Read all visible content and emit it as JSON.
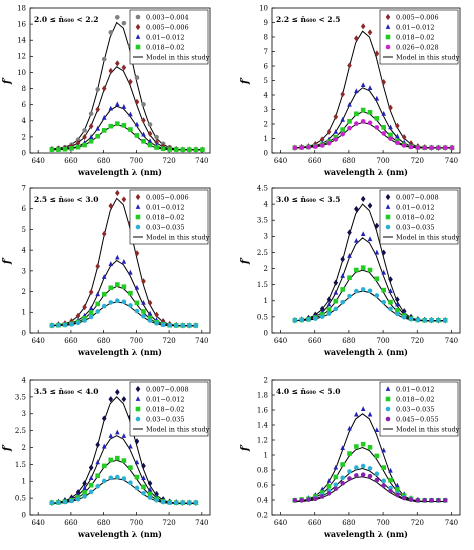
{
  "figure": {
    "model_label": "Model in this study"
  },
  "chart_data": [
    {
      "type": "line",
      "title": "2.0 ≤ n̄₆₀₀ < 2.2",
      "xlabel": "wavelength λ (nm)",
      "ylabel": "f′",
      "xlim": [
        635,
        745
      ],
      "ylim": [
        0,
        18
      ],
      "xticks": [
        640,
        660,
        680,
        700,
        720,
        740
      ],
      "yticks": [
        0,
        2,
        4,
        6,
        8,
        10,
        12,
        14,
        16,
        18
      ],
      "grid": false,
      "legend": "top-right",
      "x": [
        648,
        652,
        656,
        660,
        664,
        668,
        672,
        676,
        680,
        684,
        688,
        692,
        696,
        700,
        704,
        708,
        712,
        716,
        720,
        724,
        728,
        732,
        736,
        740
      ],
      "series": [
        {
          "name": "0.003−0.004",
          "color": "#808080",
          "marker": "circle",
          "values": [
            0.5,
            0.6,
            0.7,
            1.0,
            1.6,
            2.7,
            4.7,
            7.6,
            11.2,
            14.4,
            16.2,
            15.5,
            12.8,
            9.0,
            5.8,
            3.4,
            1.9,
            1.1,
            0.7,
            0.5,
            0.4,
            0.4,
            0.4,
            0.4
          ]
        },
        {
          "name": "0.005−0.006",
          "color": "#8b2a2a",
          "marker": "diamond",
          "values": [
            0.45,
            0.5,
            0.6,
            0.8,
            1.2,
            1.9,
            3.2,
            5.2,
            7.7,
            9.8,
            10.7,
            10.2,
            8.5,
            6.1,
            3.9,
            2.3,
            1.3,
            0.8,
            0.55,
            0.45,
            0.4,
            0.4,
            0.4,
            0.4
          ]
        },
        {
          "name": "0.01−0.012",
          "color": "#2323b8",
          "marker": "triangle",
          "values": [
            0.4,
            0.45,
            0.5,
            0.6,
            0.8,
            1.2,
            1.9,
            2.9,
            4.2,
            5.3,
            5.8,
            5.5,
            4.6,
            3.4,
            2.2,
            1.4,
            0.9,
            0.6,
            0.45,
            0.4,
            0.4,
            0.4,
            0.4,
            0.4
          ]
        },
        {
          "name": "0.018−0.02",
          "color": "#22cc22",
          "marker": "square",
          "values": [
            0.4,
            0.4,
            0.45,
            0.55,
            0.7,
            0.95,
            1.4,
            2.0,
            2.7,
            3.2,
            3.5,
            3.3,
            2.8,
            2.1,
            1.4,
            0.95,
            0.65,
            0.5,
            0.42,
            0.4,
            0.4,
            0.4,
            0.4,
            0.4
          ]
        }
      ]
    },
    {
      "type": "line",
      "title": "2.2 ≤ n̄₆₀₀ < 2.5",
      "xlabel": "wavelength λ (nm)",
      "ylabel": "f′",
      "xlim": [
        635,
        745
      ],
      "ylim": [
        0,
        10
      ],
      "xticks": [
        640,
        660,
        680,
        700,
        720,
        740
      ],
      "yticks": [
        0,
        1,
        2,
        3,
        4,
        5,
        6,
        7,
        8,
        9,
        10
      ],
      "grid": false,
      "legend": "top-right",
      "x": [
        648,
        652,
        656,
        660,
        664,
        668,
        672,
        676,
        680,
        684,
        688,
        692,
        696,
        700,
        704,
        708,
        712,
        716,
        720,
        724,
        728,
        732,
        736,
        740
      ],
      "series": [
        {
          "name": "0.005−0.006",
          "color": "#8b2a2a",
          "marker": "diamond",
          "values": [
            0.35,
            0.4,
            0.45,
            0.6,
            0.9,
            1.4,
            2.4,
            3.9,
            5.8,
            7.6,
            8.4,
            8.0,
            6.6,
            4.7,
            3.0,
            1.8,
            1.05,
            0.65,
            0.45,
            0.38,
            0.35,
            0.35,
            0.35,
            0.35
          ]
        },
        {
          "name": "0.01−0.012",
          "color": "#2323b8",
          "marker": "triangle",
          "values": [
            0.35,
            0.38,
            0.42,
            0.5,
            0.65,
            0.9,
            1.4,
            2.2,
            3.2,
            4.1,
            4.5,
            4.3,
            3.6,
            2.6,
            1.7,
            1.1,
            0.7,
            0.5,
            0.4,
            0.36,
            0.35,
            0.35,
            0.35,
            0.35
          ]
        },
        {
          "name": "0.018−0.02",
          "color": "#22cc22",
          "marker": "square",
          "values": [
            0.35,
            0.37,
            0.4,
            0.45,
            0.55,
            0.75,
            1.05,
            1.55,
            2.1,
            2.6,
            2.85,
            2.7,
            2.3,
            1.7,
            1.2,
            0.8,
            0.55,
            0.42,
            0.37,
            0.35,
            0.35,
            0.35,
            0.35,
            0.35
          ]
        },
        {
          "name": "0.026−0.028",
          "color": "#cc22cc",
          "marker": "circle",
          "values": [
            0.35,
            0.36,
            0.38,
            0.42,
            0.5,
            0.65,
            0.9,
            1.25,
            1.65,
            1.95,
            2.1,
            2.0,
            1.7,
            1.3,
            0.95,
            0.68,
            0.5,
            0.4,
            0.36,
            0.35,
            0.35,
            0.35,
            0.35,
            0.35
          ]
        }
      ]
    },
    {
      "type": "line",
      "title": "2.5 ≤ n̄₆₀₀ < 3.0",
      "xlabel": "wavelength λ (nm)",
      "ylabel": "f′",
      "xlim": [
        635,
        745
      ],
      "ylim": [
        0,
        7
      ],
      "xticks": [
        640,
        660,
        680,
        700,
        720,
        740
      ],
      "yticks": [
        0,
        1,
        2,
        3,
        4,
        5,
        6,
        7
      ],
      "grid": false,
      "legend": "top-right",
      "x": [
        648,
        652,
        656,
        660,
        664,
        668,
        672,
        676,
        680,
        684,
        688,
        692,
        696,
        700,
        704,
        708,
        712,
        716,
        720,
        724,
        728,
        732,
        736
      ],
      "series": [
        {
          "name": "0.005−0.006",
          "color": "#8b2a2a",
          "marker": "diamond",
          "values": [
            0.35,
            0.4,
            0.45,
            0.55,
            0.8,
            1.2,
            1.9,
            3.1,
            4.6,
            5.9,
            6.5,
            6.2,
            5.1,
            3.7,
            2.4,
            1.4,
            0.85,
            0.55,
            0.42,
            0.37,
            0.35,
            0.35,
            0.35
          ]
        },
        {
          "name": "0.01−0.012",
          "color": "#2323b8",
          "marker": "triangle",
          "values": [
            0.35,
            0.37,
            0.4,
            0.47,
            0.6,
            0.8,
            1.15,
            1.8,
            2.6,
            3.2,
            3.5,
            3.3,
            2.8,
            2.1,
            1.4,
            0.9,
            0.6,
            0.45,
            0.38,
            0.35,
            0.35,
            0.35,
            0.35
          ]
        },
        {
          "name": "0.018−0.02",
          "color": "#22cc22",
          "marker": "square",
          "values": [
            0.35,
            0.36,
            0.38,
            0.43,
            0.52,
            0.68,
            0.95,
            1.35,
            1.8,
            2.1,
            2.25,
            2.15,
            1.85,
            1.4,
            1.0,
            0.7,
            0.5,
            0.4,
            0.36,
            0.35,
            0.35,
            0.35,
            0.35
          ]
        },
        {
          "name": "0.03−0.035",
          "color": "#2ab0d4",
          "marker": "circle",
          "values": [
            0.35,
            0.36,
            0.37,
            0.4,
            0.47,
            0.58,
            0.75,
            1.0,
            1.25,
            1.42,
            1.5,
            1.45,
            1.28,
            1.02,
            0.78,
            0.58,
            0.45,
            0.38,
            0.36,
            0.35,
            0.35,
            0.35,
            0.35
          ]
        }
      ]
    },
    {
      "type": "line",
      "title": "3.0 ≤ n̄₆₀₀ < 3.5",
      "xlabel": "wavelength λ (nm)",
      "ylabel": "f′",
      "xlim": [
        635,
        745
      ],
      "ylim": [
        0,
        4.5
      ],
      "xticks": [
        640,
        660,
        680,
        700,
        720,
        740
      ],
      "yticks": [
        0,
        0.5,
        1,
        1.5,
        2,
        2.5,
        3,
        3.5,
        4,
        4.5
      ],
      "grid": false,
      "legend": "top-right",
      "x": [
        648,
        652,
        656,
        660,
        664,
        668,
        672,
        676,
        680,
        684,
        688,
        692,
        696,
        700,
        704,
        708,
        712,
        716,
        720,
        724,
        728,
        732,
        736
      ],
      "series": [
        {
          "name": "0.007−0.008",
          "color": "#10104a",
          "marker": "diamond",
          "values": [
            0.38,
            0.4,
            0.45,
            0.55,
            0.72,
            1.0,
            1.5,
            2.2,
            3.0,
            3.7,
            4.0,
            3.8,
            3.2,
            2.4,
            1.6,
            1.0,
            0.65,
            0.48,
            0.41,
            0.39,
            0.38,
            0.38,
            0.38
          ]
        },
        {
          "name": "0.01−0.012",
          "color": "#2323b8",
          "marker": "triangle",
          "values": [
            0.38,
            0.4,
            0.43,
            0.5,
            0.62,
            0.85,
            1.2,
            1.7,
            2.3,
            2.75,
            2.95,
            2.8,
            2.4,
            1.8,
            1.25,
            0.85,
            0.58,
            0.45,
            0.4,
            0.38,
            0.38,
            0.38,
            0.38
          ]
        },
        {
          "name": "0.018−0.02",
          "color": "#22cc22",
          "marker": "square",
          "values": [
            0.38,
            0.39,
            0.41,
            0.46,
            0.55,
            0.7,
            0.95,
            1.3,
            1.65,
            1.88,
            1.95,
            1.88,
            1.62,
            1.28,
            0.92,
            0.68,
            0.52,
            0.43,
            0.39,
            0.38,
            0.38,
            0.38,
            0.38
          ]
        },
        {
          "name": "0.03−0.035",
          "color": "#2ab0d4",
          "marker": "circle",
          "values": [
            0.38,
            0.39,
            0.4,
            0.43,
            0.49,
            0.58,
            0.72,
            0.92,
            1.1,
            1.25,
            1.3,
            1.26,
            1.12,
            0.92,
            0.72,
            0.57,
            0.47,
            0.41,
            0.39,
            0.38,
            0.38,
            0.38,
            0.38
          ]
        }
      ]
    },
    {
      "type": "line",
      "title": "3.5 ≤ n̄₆₀₀ < 4.0",
      "xlabel": "wavelength λ (nm)",
      "ylabel": "f′",
      "xlim": [
        635,
        745
      ],
      "ylim": [
        0,
        4
      ],
      "xticks": [
        640,
        660,
        680,
        700,
        720,
        740
      ],
      "yticks": [
        0,
        0.5,
        1,
        1.5,
        2,
        2.5,
        3,
        3.5,
        4
      ],
      "grid": false,
      "legend": "top-right",
      "x": [
        648,
        652,
        656,
        660,
        664,
        668,
        672,
        676,
        680,
        684,
        688,
        692,
        696,
        700,
        704,
        708,
        712,
        716,
        720,
        724,
        728,
        732,
        736
      ],
      "series": [
        {
          "name": "0.007−0.008",
          "color": "#10104a",
          "marker": "diamond",
          "values": [
            0.35,
            0.37,
            0.42,
            0.5,
            0.65,
            0.9,
            1.35,
            2.0,
            2.75,
            3.3,
            3.5,
            3.3,
            2.8,
            2.1,
            1.4,
            0.9,
            0.6,
            0.45,
            0.38,
            0.36,
            0.35,
            0.35,
            0.35
          ]
        },
        {
          "name": "0.01−0.012",
          "color": "#2323b8",
          "marker": "triangle",
          "values": [
            0.35,
            0.36,
            0.4,
            0.46,
            0.57,
            0.76,
            1.05,
            1.5,
            1.95,
            2.25,
            2.35,
            2.25,
            1.95,
            1.5,
            1.05,
            0.72,
            0.52,
            0.41,
            0.37,
            0.35,
            0.35,
            0.35,
            0.35
          ]
        },
        {
          "name": "0.018−0.02",
          "color": "#22cc22",
          "marker": "square",
          "values": [
            0.35,
            0.36,
            0.38,
            0.42,
            0.5,
            0.64,
            0.85,
            1.12,
            1.4,
            1.57,
            1.62,
            1.55,
            1.35,
            1.08,
            0.8,
            0.6,
            0.46,
            0.39,
            0.36,
            0.35,
            0.35,
            0.35,
            0.35
          ]
        },
        {
          "name": "0.03−0.035",
          "color": "#2ab0d4",
          "marker": "circle",
          "values": [
            0.35,
            0.35,
            0.37,
            0.4,
            0.45,
            0.53,
            0.66,
            0.82,
            0.97,
            1.06,
            1.08,
            1.04,
            0.92,
            0.77,
            0.62,
            0.5,
            0.42,
            0.37,
            0.35,
            0.35,
            0.35,
            0.35,
            0.35
          ]
        }
      ]
    },
    {
      "type": "line",
      "title": "4.0 ≤ n̄₆₀₀ < 5.0",
      "xlabel": "wavelength λ (nm)",
      "ylabel": "f′",
      "xlim": [
        635,
        745
      ],
      "ylim": [
        0.2,
        2
      ],
      "xticks": [
        640,
        660,
        680,
        700,
        720,
        740
      ],
      "yticks": [
        0.2,
        0.4,
        0.6,
        0.8,
        1,
        1.2,
        1.4,
        1.6,
        1.8,
        2
      ],
      "grid": false,
      "legend": "top-right",
      "x": [
        648,
        652,
        656,
        660,
        664,
        668,
        672,
        676,
        680,
        684,
        688,
        692,
        696,
        700,
        704,
        708,
        712,
        716,
        720,
        724,
        728,
        732,
        736
      ],
      "series": [
        {
          "name": "0.01−0.012",
          "color": "#2323b8",
          "marker": "triangle",
          "values": [
            0.38,
            0.39,
            0.41,
            0.45,
            0.52,
            0.63,
            0.8,
            1.05,
            1.3,
            1.48,
            1.55,
            1.48,
            1.28,
            1.02,
            0.76,
            0.57,
            0.46,
            0.41,
            0.39,
            0.38,
            0.38,
            0.38,
            0.38
          ]
        },
        {
          "name": "0.018−0.02",
          "color": "#22cc22",
          "marker": "square",
          "values": [
            0.38,
            0.39,
            0.4,
            0.43,
            0.48,
            0.56,
            0.68,
            0.84,
            0.98,
            1.07,
            1.1,
            1.06,
            0.95,
            0.8,
            0.64,
            0.52,
            0.44,
            0.4,
            0.38,
            0.38,
            0.38,
            0.38,
            0.38
          ]
        },
        {
          "name": "0.03−0.035",
          "color": "#2ab0d4",
          "marker": "circle",
          "values": [
            0.38,
            0.38,
            0.39,
            0.41,
            0.45,
            0.5,
            0.58,
            0.67,
            0.75,
            0.8,
            0.82,
            0.79,
            0.72,
            0.63,
            0.54,
            0.47,
            0.42,
            0.39,
            0.38,
            0.38,
            0.38,
            0.38,
            0.38
          ]
        },
        {
          "name": "0.045−0.055",
          "color": "#8822aa",
          "marker": "circle",
          "values": [
            0.38,
            0.38,
            0.39,
            0.4,
            0.43,
            0.47,
            0.53,
            0.6,
            0.66,
            0.7,
            0.71,
            0.69,
            0.64,
            0.57,
            0.5,
            0.45,
            0.41,
            0.39,
            0.38,
            0.38,
            0.38,
            0.38,
            0.38
          ]
        }
      ]
    }
  ]
}
